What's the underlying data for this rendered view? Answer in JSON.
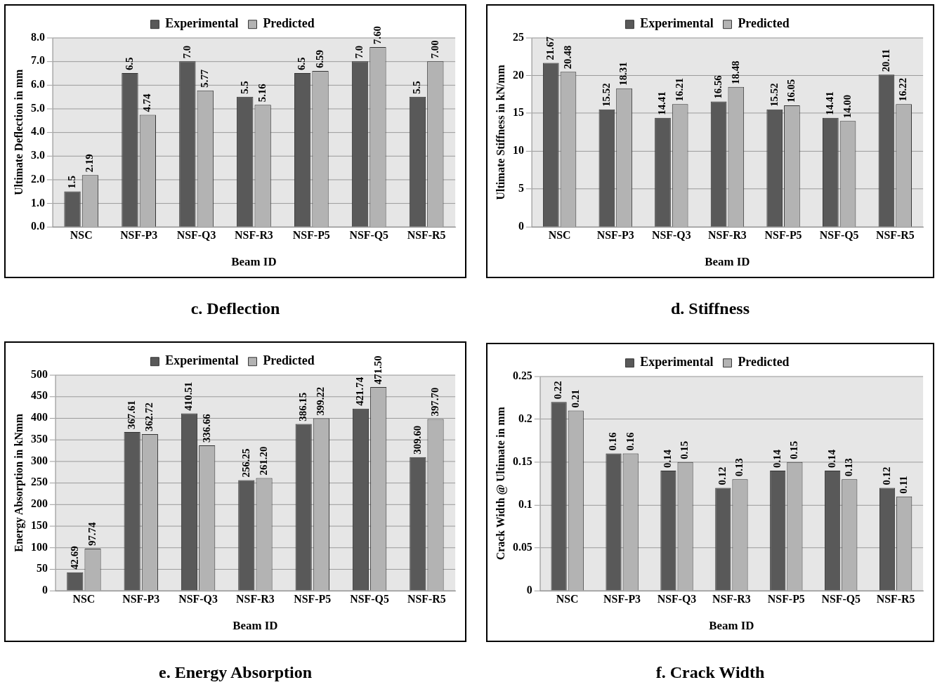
{
  "chart_data": [
    {
      "type": "bar",
      "title": "c. Deflection",
      "xlabel": "Beam ID",
      "ylabel": "Ultimate Deflection in mm",
      "categories": [
        "NSC",
        "NSF-P3",
        "NSF-Q3",
        "NSF-R3",
        "NSF-P5",
        "NSF-Q5",
        "NSF-R5"
      ],
      "series": [
        {
          "name": "Experimental",
          "color": "#595959",
          "values": [
            1.5,
            6.5,
            7.0,
            5.5,
            6.5,
            7.0,
            5.5
          ],
          "value_labels": [
            "1.5",
            "6.5",
            "7.0",
            "5.5",
            "6.5",
            "7.0",
            "5.5"
          ]
        },
        {
          "name": "Predicted",
          "color": "#b3b3b3",
          "values": [
            2.19,
            4.74,
            5.77,
            5.16,
            6.59,
            7.6,
            7.0
          ],
          "value_labels": [
            "2.19",
            "4.74",
            "5.77",
            "5.16",
            "6.59",
            "7.60",
            "7.00"
          ]
        }
      ],
      "ylim": [
        0,
        8
      ],
      "yticks": [
        {
          "value": 0,
          "label": "0.0"
        },
        {
          "value": 1,
          "label": "1.0"
        },
        {
          "value": 2,
          "label": "2.0"
        },
        {
          "value": 3,
          "label": "3.0"
        },
        {
          "value": 4,
          "label": "4.0"
        },
        {
          "value": 5,
          "label": "5.0"
        },
        {
          "value": 6,
          "label": "6.0"
        },
        {
          "value": 7,
          "label": "7.0"
        },
        {
          "value": 8,
          "label": "8.0"
        }
      ],
      "grid": "y",
      "legend": "top"
    },
    {
      "type": "bar",
      "title": "d. Stiffness",
      "xlabel": "Beam ID",
      "ylabel": "Ultimate Stiffness in kN/mm",
      "categories": [
        "NSC",
        "NSF-P3",
        "NSF-Q3",
        "NSF-R3",
        "NSF-P5",
        "NSF-Q5",
        "NSF-R5"
      ],
      "series": [
        {
          "name": "Experimental",
          "color": "#595959",
          "values": [
            21.67,
            15.52,
            14.41,
            16.56,
            15.52,
            14.41,
            20.11
          ],
          "value_labels": [
            "21.67",
            "15.52",
            "14.41",
            "16.56",
            "15.52",
            "14.41",
            "20.11"
          ]
        },
        {
          "name": "Predicted",
          "color": "#b3b3b3",
          "values": [
            20.48,
            18.31,
            16.21,
            18.48,
            16.05,
            14.0,
            16.22
          ],
          "value_labels": [
            "20.48",
            "18.31",
            "16.21",
            "18.48",
            "16.05",
            "14.00",
            "16.22"
          ]
        }
      ],
      "ylim": [
        0,
        25
      ],
      "yticks": [
        0,
        5,
        10,
        15,
        20,
        25
      ],
      "grid": "y",
      "legend": "top"
    },
    {
      "type": "bar",
      "title": "e. Energy Absorption",
      "xlabel": "Beam ID",
      "ylabel": "Energy Absorption in kNmm",
      "categories": [
        "NSC",
        "NSF-P3",
        "NSF-Q3",
        "NSF-R3",
        "NSF-P5",
        "NSF-Q5",
        "NSF-R5"
      ],
      "series": [
        {
          "name": "Experimental",
          "color": "#595959",
          "values": [
            42.69,
            367.61,
            410.51,
            256.25,
            386.15,
            421.74,
            309.6
          ],
          "value_labels": [
            "42.69",
            "367.61",
            "410.51",
            "256.25",
            "386.15",
            "421.74",
            "309.60"
          ]
        },
        {
          "name": "Predicted",
          "color": "#b3b3b3",
          "values": [
            97.74,
            362.72,
            336.66,
            261.2,
            399.22,
            471.5,
            397.7
          ],
          "value_labels": [
            "97.74",
            "362.72",
            "336.66",
            "261.20",
            "399.22",
            "471.50",
            "397.70"
          ]
        }
      ],
      "ylim": [
        0,
        500
      ],
      "yticks": [
        0,
        50,
        100,
        150,
        200,
        250,
        300,
        350,
        400,
        450,
        500
      ],
      "grid": "y",
      "legend": "top"
    },
    {
      "type": "bar",
      "title": "f. Crack Width",
      "xlabel": "Beam ID",
      "ylabel": "Crack Width @ Ultimate in mm",
      "categories": [
        "NSC",
        "NSF-P3",
        "NSF-Q3",
        "NSF-R3",
        "NSF-P5",
        "NSF-Q5",
        "NSF-R5"
      ],
      "series": [
        {
          "name": "Experimental",
          "color": "#595959",
          "values": [
            0.22,
            0.16,
            0.14,
            0.12,
            0.14,
            0.14,
            0.12
          ],
          "value_labels": [
            "0.22",
            "0.16",
            "0.14",
            "0.12",
            "0.14",
            "0.14",
            "0.12"
          ]
        },
        {
          "name": "Predicted",
          "color": "#b3b3b3",
          "values": [
            0.21,
            0.16,
            0.15,
            0.13,
            0.15,
            0.13,
            0.11
          ],
          "value_labels": [
            "0.21",
            "0.16",
            "0.15",
            "0.13",
            "0.15",
            "0.13",
            "0.11"
          ]
        }
      ],
      "ylim": [
        0,
        0.25
      ],
      "yticks": [
        0,
        0.05,
        0.1,
        0.15,
        0.2,
        0.25
      ],
      "grid": "y",
      "legend": "top"
    }
  ]
}
